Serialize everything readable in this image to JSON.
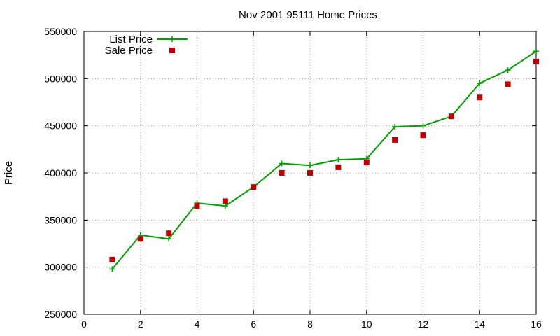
{
  "chart_data": {
    "type": "line",
    "title": "Nov 2001 95111 Home Prices",
    "xlabel": "",
    "ylabel": "Price",
    "xlim": [
      0,
      16
    ],
    "ylim": [
      250000,
      550000
    ],
    "x_ticks": [
      0,
      2,
      4,
      6,
      8,
      10,
      12,
      14,
      16
    ],
    "y_ticks": [
      250000,
      300000,
      350000,
      400000,
      450000,
      500000,
      550000
    ],
    "grid": true,
    "legend_position": "top-left",
    "series": [
      {
        "name": "List Price",
        "style": "line-with-plus-markers",
        "color": "#00a000",
        "x": [
          1,
          2,
          3,
          4,
          5,
          6,
          7,
          8,
          9,
          10,
          11,
          12,
          13,
          14,
          15,
          16
        ],
        "values": [
          298000,
          334000,
          330000,
          368000,
          365000,
          385000,
          410000,
          408000,
          414000,
          415000,
          449000,
          450000,
          460000,
          495000,
          509000,
          529000
        ]
      },
      {
        "name": "Sale Price",
        "style": "square-markers",
        "color": "#c00000",
        "x": [
          1,
          2,
          3,
          4,
          5,
          6,
          7,
          8,
          9,
          10,
          11,
          12,
          13,
          14,
          15,
          16
        ],
        "values": [
          308000,
          330000,
          336000,
          365000,
          370000,
          385000,
          400000,
          400000,
          406000,
          411000,
          435000,
          440000,
          460000,
          480000,
          494000,
          518000
        ]
      }
    ]
  }
}
